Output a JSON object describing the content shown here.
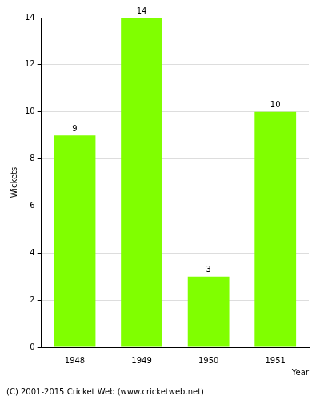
{
  "chart_data": {
    "type": "bar",
    "categories": [
      "1948",
      "1949",
      "1950",
      "1951"
    ],
    "values": [
      9,
      14,
      3,
      10
    ],
    "color": "#80ff00",
    "y_label": "Wickets",
    "x_label": "Year",
    "footer": "(C) 2001-2015 Cricket Web (www.cricketweb.net)",
    "ylim": [
      0,
      14
    ],
    "yticks": [
      0,
      2,
      4,
      6,
      8,
      10,
      12,
      14
    ],
    "grid": true,
    "data_labels": true
  }
}
